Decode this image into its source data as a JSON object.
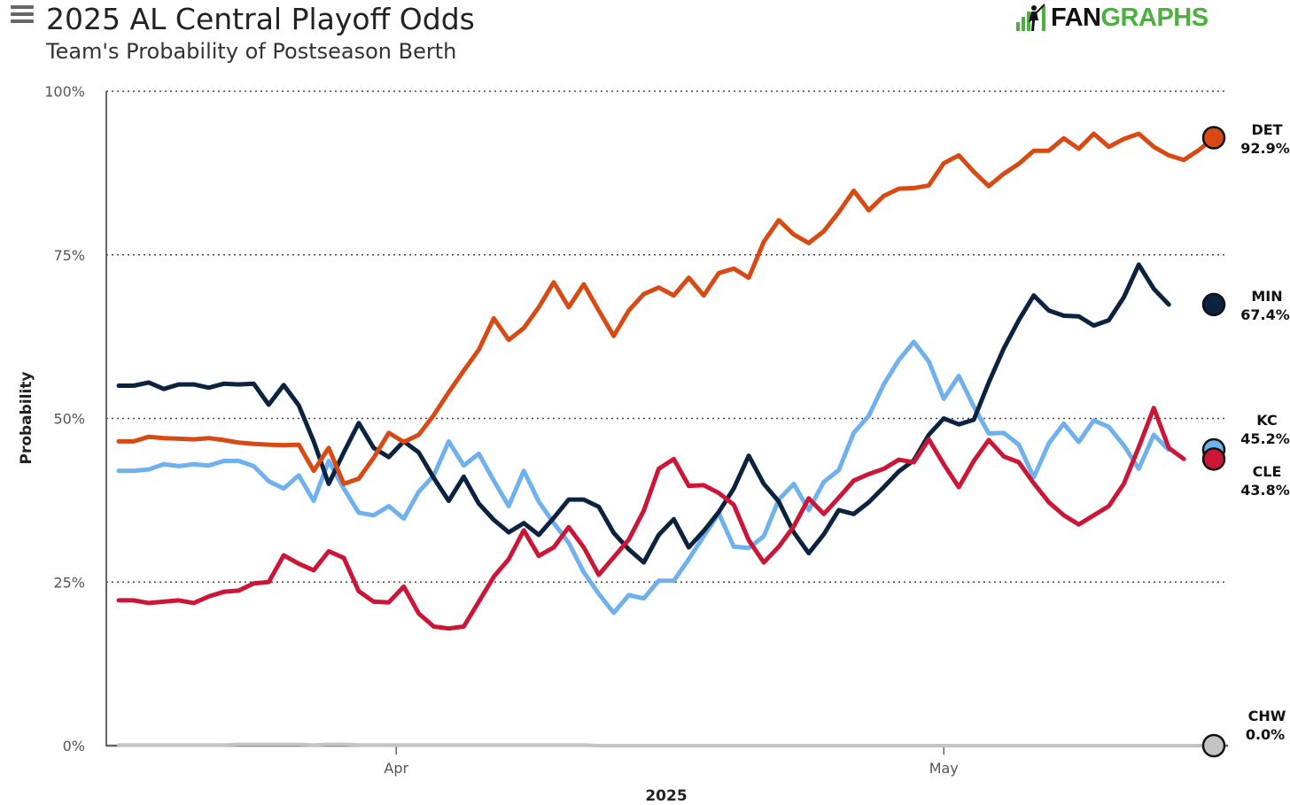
{
  "header": {
    "title": "2025 AL Central Playoff Odds",
    "subtitle": "Team's Probability of Postseason Berth",
    "brand_fan": "FAN",
    "brand_graphs": "GRAPHS"
  },
  "icons": {
    "menu": "hamburger-menu-icon",
    "brand": "batter-logo-icon"
  },
  "colors": {
    "DET": "#d84a14",
    "MIN": "#0c2340",
    "KC": "#6fb0ee",
    "CLE": "#cc1638",
    "CHW": "#c4c4c4",
    "grid": "#444444",
    "axis": "#666666"
  },
  "chart_data": {
    "type": "line",
    "title": "2025 AL Central Playoff Odds",
    "subtitle": "Team's Probability of Postseason Berth",
    "xlabel": "2025",
    "ylabel": "Probability",
    "ylim": [
      0,
      100
    ],
    "yticks": [
      0,
      25,
      50,
      75,
      100
    ],
    "yticklabels": [
      "0%",
      "25%",
      "50%",
      "75%",
      "100%"
    ],
    "xticklabels": [
      "Apr",
      "May"
    ],
    "xtick_index": [
      18.5,
      55
    ],
    "grid": "horizontal-dotted",
    "series": [
      {
        "name": "DET",
        "final_label": "92.9%",
        "values": [
          46.5,
          46.5,
          47.2,
          47,
          46.9,
          46.8,
          47,
          46.7,
          46.3,
          46.1,
          46,
          45.9,
          46,
          42,
          45.5,
          40,
          40.8,
          44,
          47.8,
          46.4,
          47.5,
          50.5,
          54,
          57.3,
          60.5,
          65.3,
          62,
          63.8,
          67,
          70.8,
          67,
          70.5,
          66.5,
          62.6,
          66.5,
          69,
          70,
          68.8,
          71.5,
          68.8,
          72.2,
          72.9,
          71.5,
          77,
          80.3,
          78.1,
          76.8,
          78.6,
          81.5,
          84.8,
          81.8,
          84,
          85.1,
          85.2,
          85.6,
          89,
          90.2,
          87.7,
          85.5,
          87.4,
          88.9,
          90.9,
          90.9,
          92.8,
          91.2,
          93.5,
          91.5,
          92.7,
          93.5,
          91.5,
          90.2,
          89.5,
          91,
          92.9
        ]
      },
      {
        "name": "MIN",
        "final_label": "67.4%",
        "values": [
          55,
          55,
          55.5,
          54.5,
          55.2,
          55.2,
          54.7,
          55.3,
          55.2,
          55.3,
          52.1,
          55.1,
          52,
          46.5,
          40,
          44.8,
          49.3,
          45.5,
          44.1,
          46.5,
          44.8,
          40.9,
          37.4,
          41.1,
          37,
          34.5,
          32.6,
          34,
          32.2,
          34.8,
          37.6,
          37.6,
          36.5,
          32.5,
          30,
          28,
          32.2,
          34.6,
          30.3,
          32.8,
          35.7,
          39.3,
          44.3,
          40,
          37.3,
          32.6,
          29.4,
          32.3,
          36,
          35.4,
          37.2,
          39.5,
          41.9,
          43.6,
          47.5,
          50,
          49.1,
          49.8,
          55.5,
          60.7,
          65,
          68.8,
          66.5,
          65.7,
          65.6,
          64.2,
          65,
          68.5,
          73.5,
          69.8,
          67.4
        ]
      },
      {
        "name": "KC",
        "final_label": "45.2%",
        "values": [
          42,
          42,
          42.2,
          43,
          42.7,
          43,
          42.8,
          43.5,
          43.5,
          42.7,
          40.4,
          39.3,
          41.3,
          37.4,
          43.5,
          39.3,
          35.6,
          35.2,
          36.6,
          34.7,
          38.8,
          41.3,
          46.5,
          42.8,
          44.6,
          40.5,
          36.6,
          42,
          37.3,
          34,
          31,
          26.5,
          23.2,
          20.3,
          23,
          22.5,
          25.2,
          25.2,
          28.5,
          32,
          35.5,
          30.4,
          30.2,
          32,
          37.6,
          40,
          36,
          40.3,
          42.1,
          47.8,
          50.4,
          55.2,
          58.9,
          61.7,
          58.7,
          53,
          56.5,
          51.8,
          47.7,
          47.8,
          46,
          41,
          46.2,
          49.2,
          46.4,
          49.7,
          48.7,
          45.9,
          42.3,
          47.5,
          45.2
        ]
      },
      {
        "name": "CLE",
        "final_label": "43.8%",
        "values": [
          22.2,
          22.2,
          21.8,
          22,
          22.2,
          21.8,
          22.8,
          23.5,
          23.7,
          24.8,
          25,
          29.1,
          27.8,
          26.8,
          29.7,
          28.7,
          23.6,
          22,
          21.9,
          24.3,
          20.2,
          18.2,
          17.9,
          18.2,
          22,
          25.8,
          28.5,
          32.9,
          29,
          30.3,
          33.4,
          30.3,
          26.1,
          28.8,
          31.5,
          35.9,
          42.3,
          43.8,
          39.7,
          39.8,
          38.6,
          36.8,
          31.4,
          28,
          30.4,
          33.5,
          37.8,
          35.4,
          37.9,
          40.5,
          41.5,
          42.3,
          43.7,
          43.3,
          46.8,
          43,
          39.5,
          43.5,
          46.7,
          44.2,
          43.3,
          40.1,
          37.2,
          35.2,
          33.8,
          35.2,
          36.6,
          40,
          45.6,
          51.6,
          45.5,
          43.8
        ]
      },
      {
        "name": "CHW",
        "final_label": "0.0%",
        "values": [
          0.1,
          0.1,
          0.1,
          0.1,
          0.1,
          0.1,
          0.1,
          0.1,
          0.2,
          0.2,
          0.2,
          0.2,
          0.2,
          0.1,
          0.2,
          0.2,
          0.1,
          0.1,
          0.1,
          0.1,
          0.1,
          0.1,
          0.1,
          0.1,
          0.1,
          0.1,
          0.1,
          0.1,
          0.1,
          0.1,
          0.1,
          0.1,
          0,
          0,
          0,
          0,
          0,
          0,
          0,
          0,
          0,
          0,
          0,
          0,
          0,
          0,
          0,
          0,
          0,
          0,
          0,
          0,
          0,
          0,
          0,
          0,
          0,
          0,
          0,
          0,
          0,
          0,
          0,
          0,
          0,
          0,
          0,
          0,
          0,
          0,
          0,
          0,
          0,
          0.0
        ]
      }
    ]
  }
}
